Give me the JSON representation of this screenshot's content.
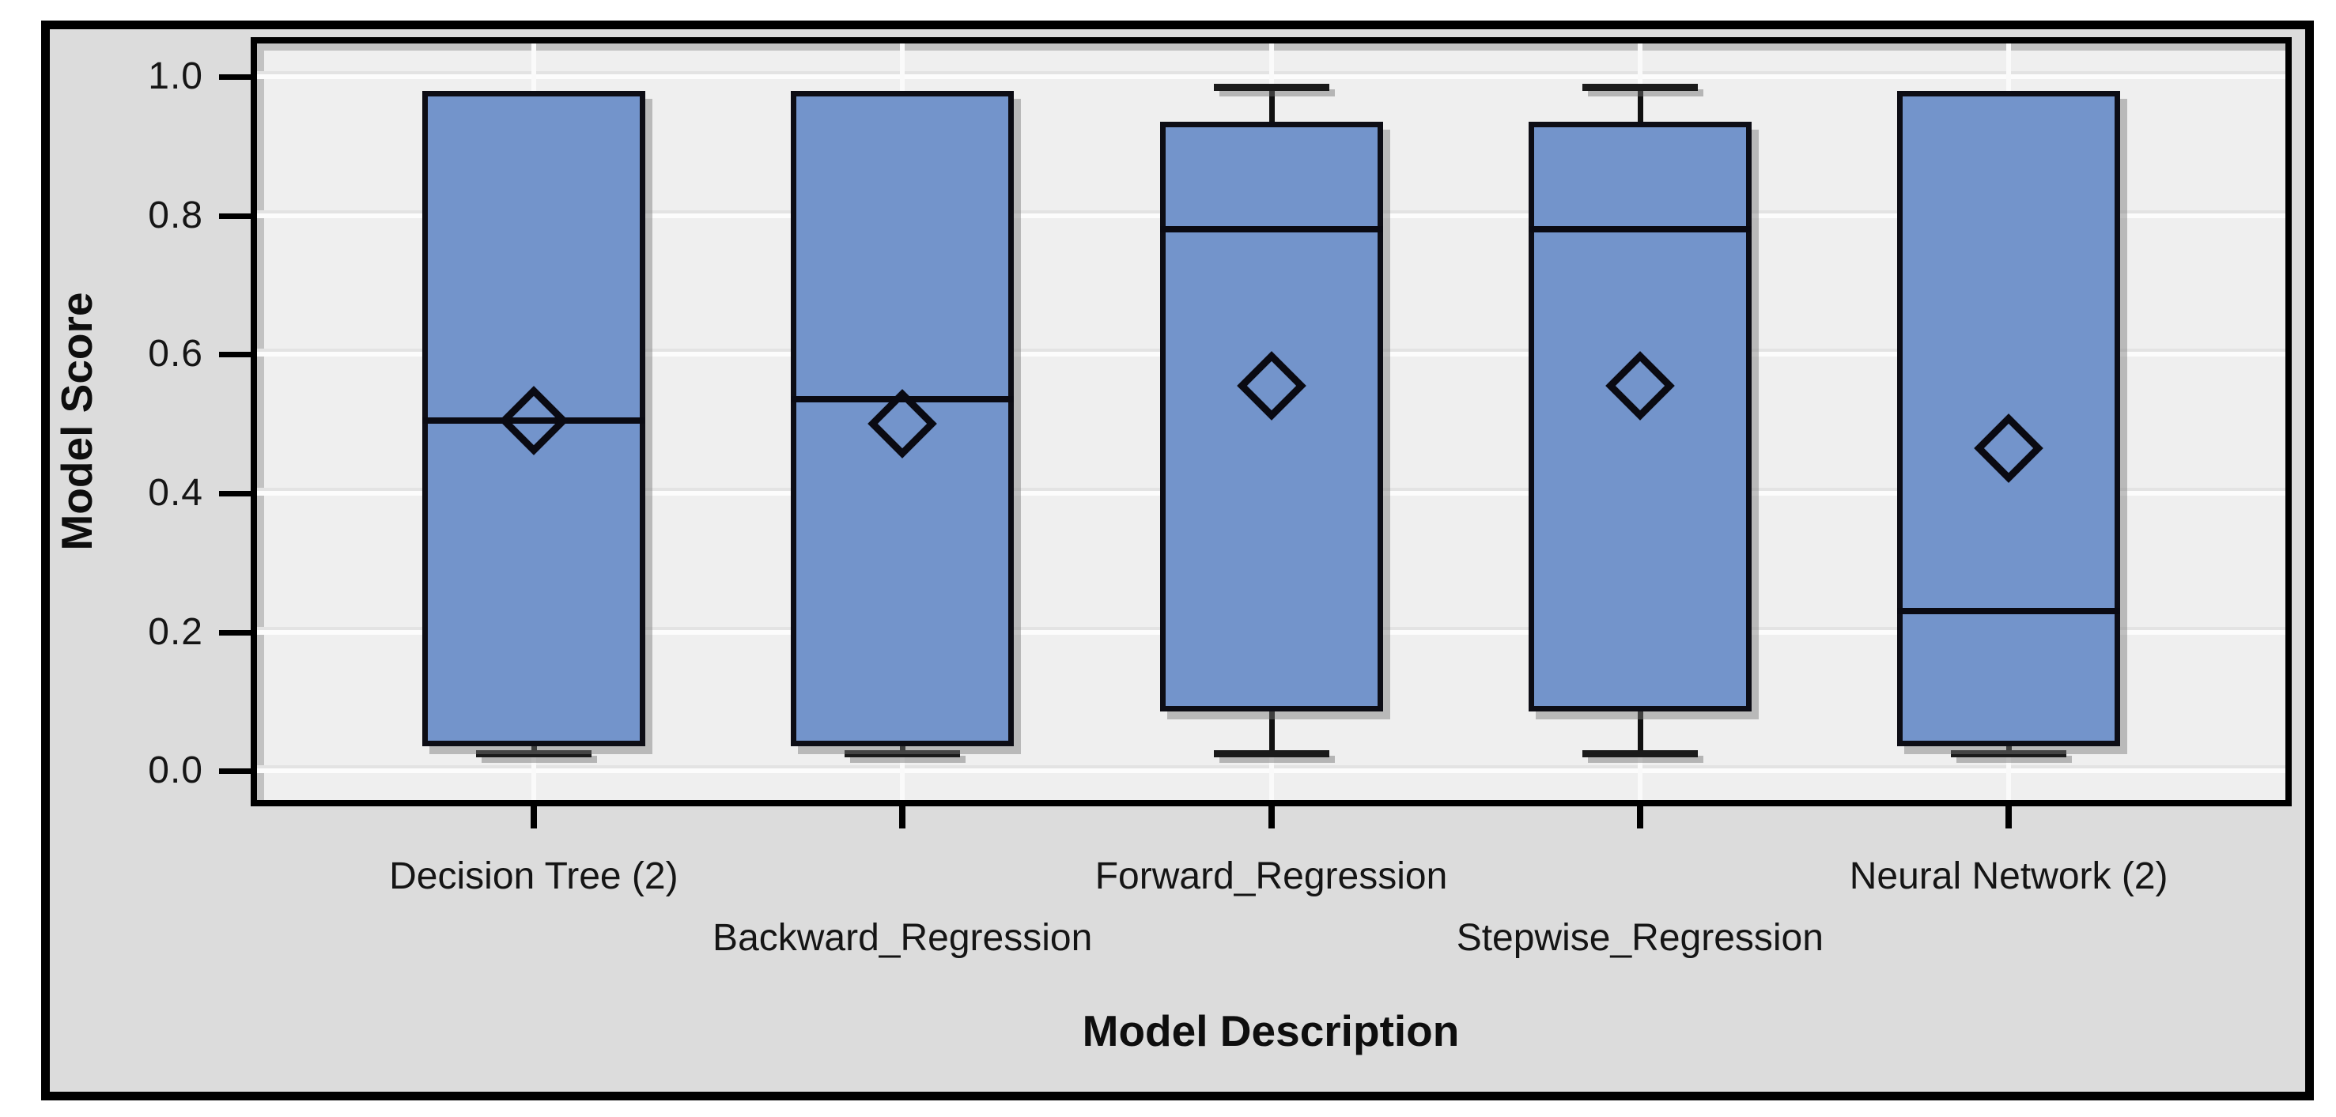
{
  "figure": {
    "outer_background": "#ffffff",
    "frame_border_color": "#000000",
    "canvas_background": "#dcdcdc",
    "plot_background": "#efefef",
    "gridline_color": "#ffffff",
    "text_color": "#151515"
  },
  "chart_data": {
    "type": "boxplot",
    "title": "",
    "xlabel": "Model Description",
    "ylabel": "Model Score",
    "ylim": [
      0.0,
      1.0
    ],
    "grid": "horizontal white gridlines at each 0.2 tick; vertical white gridline at each category center",
    "legend_position": "none",
    "marker_meaning": "open diamond marks the mean of each box",
    "box_fill": "#7394cb",
    "box_border": "#0d0d15",
    "yticks": [
      {
        "label": "1.0",
        "value": 1.0
      },
      {
        "label": "0.8",
        "value": 0.8
      },
      {
        "label": "0.6",
        "value": 0.6
      },
      {
        "label": "0.4",
        "value": 0.4
      },
      {
        "label": "0.2",
        "value": 0.2
      },
      {
        "label": "0.0",
        "value": 0.0
      }
    ],
    "categories": [
      "Decision Tree (2)",
      "Backward_Regression",
      "Forward_Regression",
      "Stepwise_Regression",
      "Neural Network (2)"
    ],
    "series": [
      {
        "label": "Decision Tree (2)",
        "label_row": 1,
        "min": 0.025,
        "q1": 0.035,
        "median": 0.505,
        "mean": 0.505,
        "q3": 0.98,
        "max": 0.98
      },
      {
        "label": "Backward_Regression",
        "label_row": 2,
        "min": 0.025,
        "q1": 0.035,
        "median": 0.535,
        "mean": 0.5,
        "q3": 0.98,
        "max": 0.98
      },
      {
        "label": "Forward_Regression",
        "label_row": 1,
        "min": 0.025,
        "q1": 0.085,
        "median": 0.78,
        "mean": 0.555,
        "q3": 0.935,
        "max": 0.985
      },
      {
        "label": "Stepwise_Regression",
        "label_row": 2,
        "min": 0.025,
        "q1": 0.085,
        "median": 0.78,
        "mean": 0.555,
        "q3": 0.935,
        "max": 0.985
      },
      {
        "label": "Neural Network (2)",
        "label_row": 1,
        "min": 0.025,
        "q1": 0.035,
        "median": 0.23,
        "mean": 0.465,
        "q3": 0.98,
        "max": 0.98
      }
    ]
  }
}
